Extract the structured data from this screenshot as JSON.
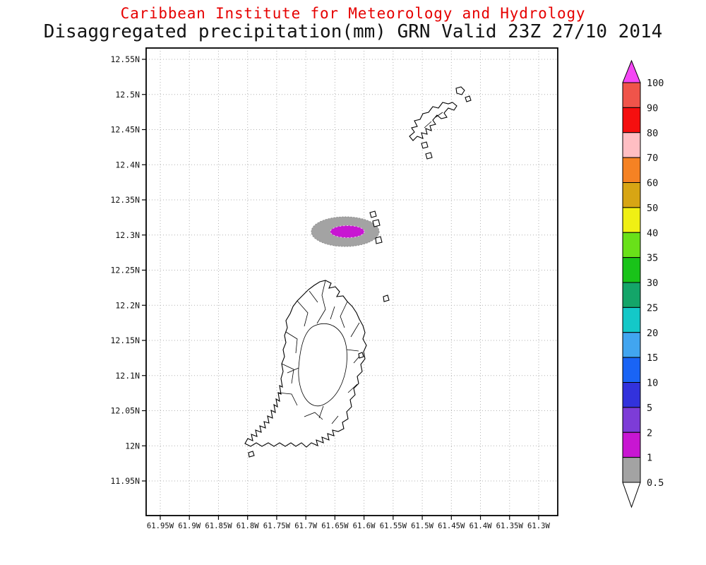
{
  "header": {
    "line1": "Caribbean Institute for Meteorology and Hydrology",
    "line2": "Disaggregated precipitation(mm) GRN Valid 23Z 27/10 2014"
  },
  "chart_data": {
    "type": "heatmap",
    "title": "Disaggregated precipitation(mm) GRN Valid 23Z 27/10 2014",
    "organization": "Caribbean Institute for Meteorology and Hydrology",
    "variable": "Disaggregated precipitation",
    "units": "mm",
    "region": "GRN",
    "valid_time": "23Z 27/10 2014",
    "grid": true,
    "x_axis": {
      "tick_labels": [
        "61.95W",
        "61.9W",
        "61.85W",
        "61.8W",
        "61.75W",
        "61.7W",
        "61.65W",
        "61.6W",
        "61.55W",
        "61.5W",
        "61.45W",
        "61.4W",
        "61.35W",
        "61.3W"
      ],
      "range_deg_west": [
        61.95,
        61.3
      ]
    },
    "y_axis": {
      "tick_labels": [
        "12.55N",
        "12.5N",
        "12.45N",
        "12.4N",
        "12.35N",
        "12.3N",
        "12.25N",
        "12.2N",
        "12.15N",
        "12.1N",
        "12.05N",
        "12N",
        "11.95N"
      ],
      "range_deg_north": [
        11.95,
        12.55
      ]
    },
    "colorbar": {
      "position": "right",
      "boundary_labels": [
        "100",
        "90",
        "80",
        "70",
        "60",
        "50",
        "40",
        "35",
        "30",
        "25",
        "20",
        "15",
        "10",
        "5",
        "2",
        "1",
        "0.5"
      ],
      "segment_colors_top_to_bottom": [
        "#f0544a",
        "#f50f0f",
        "#ffbec3",
        "#f58223",
        "#d7a514",
        "#f0f014",
        "#69e119",
        "#19c319",
        "#14a569",
        "#14c8c8",
        "#41a5f0",
        "#1964f5",
        "#3232dc",
        "#7d3cd7",
        "#c816d2",
        "#a3a3a3"
      ],
      "above_range_color": "#f546f5",
      "below_range_color": "#ffffff"
    },
    "precipitation_features": [
      {
        "name": "outer-contour",
        "approx_center": "12.3N 61.64W",
        "level_mm": "0.5-1",
        "fill": "#a3a3a3"
      },
      {
        "name": "inner-contour",
        "approx_center": "12.3N 61.64W",
        "level_mm": "1-2",
        "fill": "#c816d2"
      }
    ],
    "map_features": [
      "Grenada with watershed boundaries",
      "Carriacou",
      "Petite Martinique",
      "small islets"
    ]
  }
}
